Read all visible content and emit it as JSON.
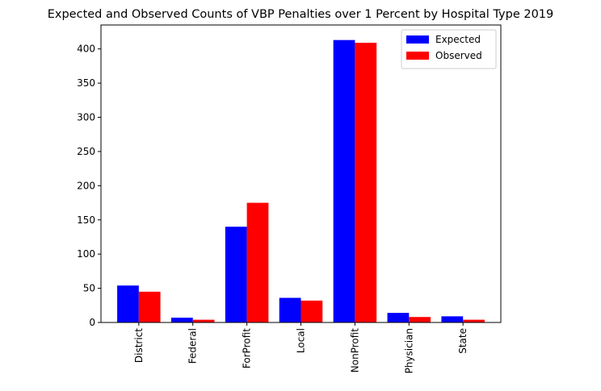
{
  "chart_data": {
    "type": "bar",
    "title": "Expected and Observed Counts of VBP Penalties over 1 Percent by Hospital Type 2019",
    "xlabel": "",
    "ylabel": "",
    "categories": [
      "District",
      "Federal",
      "ForProfit",
      "Local",
      "NonProfit",
      "Physician",
      "State"
    ],
    "series": [
      {
        "name": "Expected",
        "color": "#0000ff",
        "values": [
          54,
          7,
          140,
          36,
          413,
          14,
          9
        ]
      },
      {
        "name": "Observed",
        "color": "#ff0000",
        "values": [
          45,
          4,
          175,
          32,
          409,
          8,
          4
        ]
      }
    ],
    "ylim": [
      0,
      435
    ],
    "yticks": [
      0,
      50,
      100,
      150,
      200,
      250,
      300,
      350,
      400
    ],
    "grid": false,
    "legend_position": "top-right"
  }
}
